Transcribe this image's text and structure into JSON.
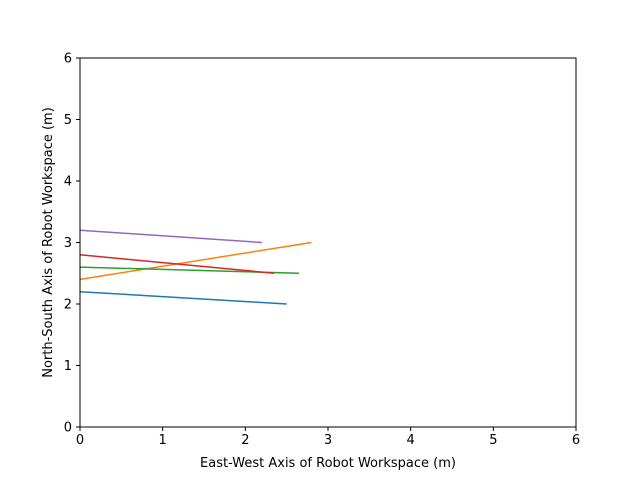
{
  "chart_data": {
    "type": "line",
    "title": "",
    "xlabel": "East-West Axis of Robot Workspace (m)",
    "ylabel": "North-South Axis of Robot Workspace (m)",
    "xlim": [
      0,
      6
    ],
    "ylim": [
      0,
      6
    ],
    "xticks": [
      "0",
      "1",
      "2",
      "3",
      "4",
      "5",
      "6"
    ],
    "yticks": [
      "0",
      "1",
      "2",
      "3",
      "4",
      "5",
      "6"
    ],
    "grid": false,
    "legend": "none",
    "series": [
      {
        "color": "#1f77b4",
        "x": [
          0,
          2.5
        ],
        "y": [
          2.2,
          2.0
        ]
      },
      {
        "color": "#ff7f0e",
        "x": [
          0,
          2.8
        ],
        "y": [
          2.4,
          3.0
        ]
      },
      {
        "color": "#2ca02c",
        "x": [
          0,
          2.65
        ],
        "y": [
          2.6,
          2.5
        ]
      },
      {
        "color": "#d62728",
        "x": [
          0,
          2.35
        ],
        "y": [
          2.8,
          2.5
        ]
      },
      {
        "color": "#9467bd",
        "x": [
          0,
          2.2
        ],
        "y": [
          3.2,
          3.0
        ]
      }
    ]
  }
}
